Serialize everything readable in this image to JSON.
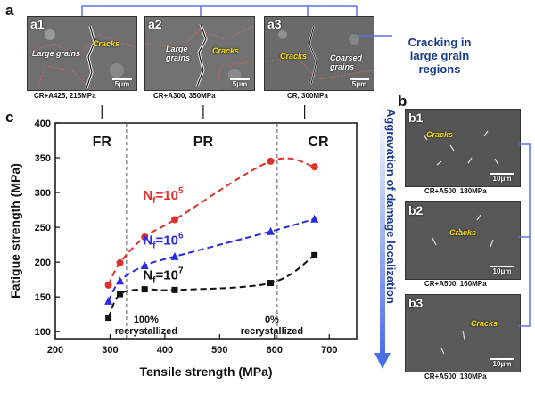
{
  "panel_a": {
    "letter": "a",
    "images": [
      {
        "sublabel": "a1",
        "annotations": [
          "Cracks",
          "Large grains"
        ],
        "scale": "5μm",
        "caption": "CR+A425, 215MPa"
      },
      {
        "sublabel": "a2",
        "annotations": [
          "Cracks",
          "Large\ngrains"
        ],
        "scale": "5μm",
        "caption": "CR+A300, 350MPa"
      },
      {
        "sublabel": "a3",
        "annotations": [
          "Cracks",
          "Coarsed\ngrains"
        ],
        "scale": "5μm",
        "caption": "CR, 300MPa"
      }
    ],
    "callout": "Cracking in\nlarge grain\nregions"
  },
  "panel_b": {
    "letter": "b",
    "images": [
      {
        "sublabel": "b1",
        "annotations": [
          "Cracks"
        ],
        "scale": "10μm",
        "caption": "CR+A500, 180MPa"
      },
      {
        "sublabel": "b2",
        "annotations": [
          "Cracks"
        ],
        "scale": "10μm",
        "caption": "CR+A500, 160MPa"
      },
      {
        "sublabel": "b3",
        "annotations": [
          "Cracks"
        ],
        "scale": "10μm",
        "caption": "CR+A500, 130MPa"
      }
    ],
    "arrow_text": "Aggravation of damage localization"
  },
  "panel_c": {
    "letter": "c",
    "region_labels": [
      "FR",
      "PR",
      "CR"
    ],
    "divider_labels": [
      "100%\nrecrystallized",
      "0%\nrecrystallized"
    ],
    "colors": {
      "red": "#e0302a",
      "blue": "#2a2ae0",
      "black": "#111111"
    }
  },
  "chart_data": {
    "type": "scatter",
    "xlabel": "Tensile strength (MPa)",
    "ylabel": "Fatigue strength (MPa)",
    "xlim": [
      200,
      750
    ],
    "ylim": [
      90,
      400
    ],
    "xticks": [
      200,
      300,
      400,
      500,
      600,
      700
    ],
    "yticks": [
      100,
      150,
      200,
      250,
      300,
      350,
      400
    ],
    "dividers_x": [
      330,
      605
    ],
    "series": [
      {
        "name": "Nf=10^5",
        "label_main": "N",
        "label_sub": "f",
        "label_eq": "=10",
        "label_sup": "5",
        "color": "#e0302a",
        "marker": "circle",
        "x": [
          297,
          318,
          363,
          418,
          593,
          673
        ],
        "y": [
          167,
          199,
          236,
          261,
          345,
          337
        ]
      },
      {
        "name": "Nf=10^6",
        "label_main": "N",
        "label_sub": "f",
        "label_eq": "=10",
        "label_sup": "6",
        "color": "#2a2ae0",
        "marker": "triangle",
        "x": [
          297,
          318,
          363,
          418,
          593,
          673
        ],
        "y": [
          144,
          173,
          195,
          208,
          244,
          262
        ]
      },
      {
        "name": "Nf=10^7",
        "label_main": "N",
        "label_sub": "f",
        "label_eq": "=10",
        "label_sup": "7",
        "color": "#111111",
        "marker": "square",
        "x": [
          297,
          318,
          363,
          418,
          593,
          673
        ],
        "y": [
          120,
          154,
          161,
          160,
          170,
          210
        ]
      }
    ]
  }
}
